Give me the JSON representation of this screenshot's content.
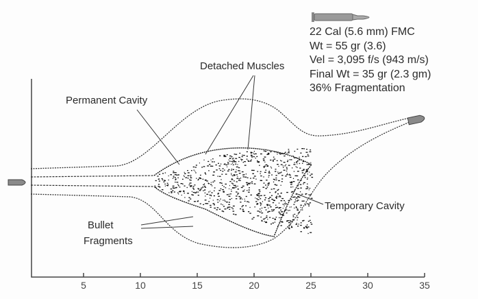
{
  "info": {
    "lines": [
      "22 Cal (5.6 mm) FMC",
      "Wt = 55 gr (3.6)",
      "Vel = 3,095 f/s (943 m/s)",
      "Final Wt = 35 gr (2.3 gm)",
      "36% Fragmentation"
    ]
  },
  "labels": {
    "detached_muscles": "Detached Muscles",
    "permanent_cavity": "Permanent Cavity",
    "temporary_cavity": "Temporary Cavity",
    "bullet_fragments_1": "Bullet",
    "bullet_fragments_2": "Fragments"
  },
  "axis": {
    "ticks": [
      "5",
      "10",
      "15",
      "20",
      "25",
      "30",
      "35"
    ]
  },
  "colors": {
    "ink": "#222222",
    "bullet": "#8a8a8a"
  }
}
